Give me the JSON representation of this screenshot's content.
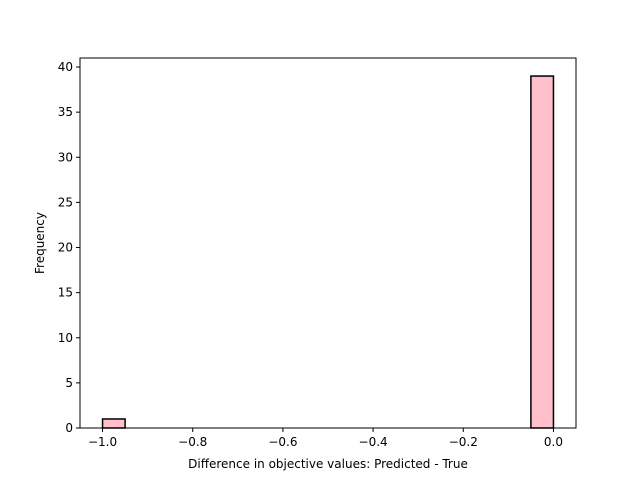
{
  "chart_data": {
    "type": "bar",
    "title": "",
    "xlabel": "Difference in objective values: Predicted - True",
    "ylabel": "Frequency",
    "xlim": [
      -1.05,
      0.05
    ],
    "ylim": [
      0,
      41
    ],
    "bin_width": 0.05,
    "bins": [
      {
        "start": -1.0,
        "end": -0.95,
        "count": 1
      },
      {
        "start": -0.95,
        "end": -0.9,
        "count": 0
      },
      {
        "start": -0.9,
        "end": -0.85,
        "count": 0
      },
      {
        "start": -0.85,
        "end": -0.8,
        "count": 0
      },
      {
        "start": -0.8,
        "end": -0.75,
        "count": 0
      },
      {
        "start": -0.75,
        "end": -0.7,
        "count": 0
      },
      {
        "start": -0.7,
        "end": -0.65,
        "count": 0
      },
      {
        "start": -0.65,
        "end": -0.6,
        "count": 0
      },
      {
        "start": -0.6,
        "end": -0.55,
        "count": 0
      },
      {
        "start": -0.55,
        "end": -0.5,
        "count": 0
      },
      {
        "start": -0.5,
        "end": -0.45,
        "count": 0
      },
      {
        "start": -0.45,
        "end": -0.4,
        "count": 0
      },
      {
        "start": -0.4,
        "end": -0.35,
        "count": 0
      },
      {
        "start": -0.35,
        "end": -0.3,
        "count": 0
      },
      {
        "start": -0.3,
        "end": -0.25,
        "count": 0
      },
      {
        "start": -0.25,
        "end": -0.2,
        "count": 0
      },
      {
        "start": -0.2,
        "end": -0.15,
        "count": 0
      },
      {
        "start": -0.15,
        "end": -0.1,
        "count": 0
      },
      {
        "start": -0.1,
        "end": -0.05,
        "count": 0
      },
      {
        "start": -0.05,
        "end": 0.0,
        "count": 39
      }
    ],
    "x_ticks": [
      {
        "value": -1.0,
        "label": "−1.0"
      },
      {
        "value": -0.8,
        "label": "−0.8"
      },
      {
        "value": -0.6,
        "label": "−0.6"
      },
      {
        "value": -0.4,
        "label": "−0.4"
      },
      {
        "value": -0.2,
        "label": "−0.2"
      },
      {
        "value": 0.0,
        "label": "0.0"
      }
    ],
    "y_ticks": [
      {
        "value": 0,
        "label": "0"
      },
      {
        "value": 5,
        "label": "5"
      },
      {
        "value": 10,
        "label": "10"
      },
      {
        "value": 15,
        "label": "15"
      },
      {
        "value": 20,
        "label": "20"
      },
      {
        "value": 25,
        "label": "25"
      },
      {
        "value": 30,
        "label": "30"
      },
      {
        "value": 35,
        "label": "35"
      },
      {
        "value": 40,
        "label": "40"
      }
    ],
    "grid": false,
    "legend": "none",
    "bar_fill": "#ffc0cb",
    "bar_edge": "#000000"
  }
}
